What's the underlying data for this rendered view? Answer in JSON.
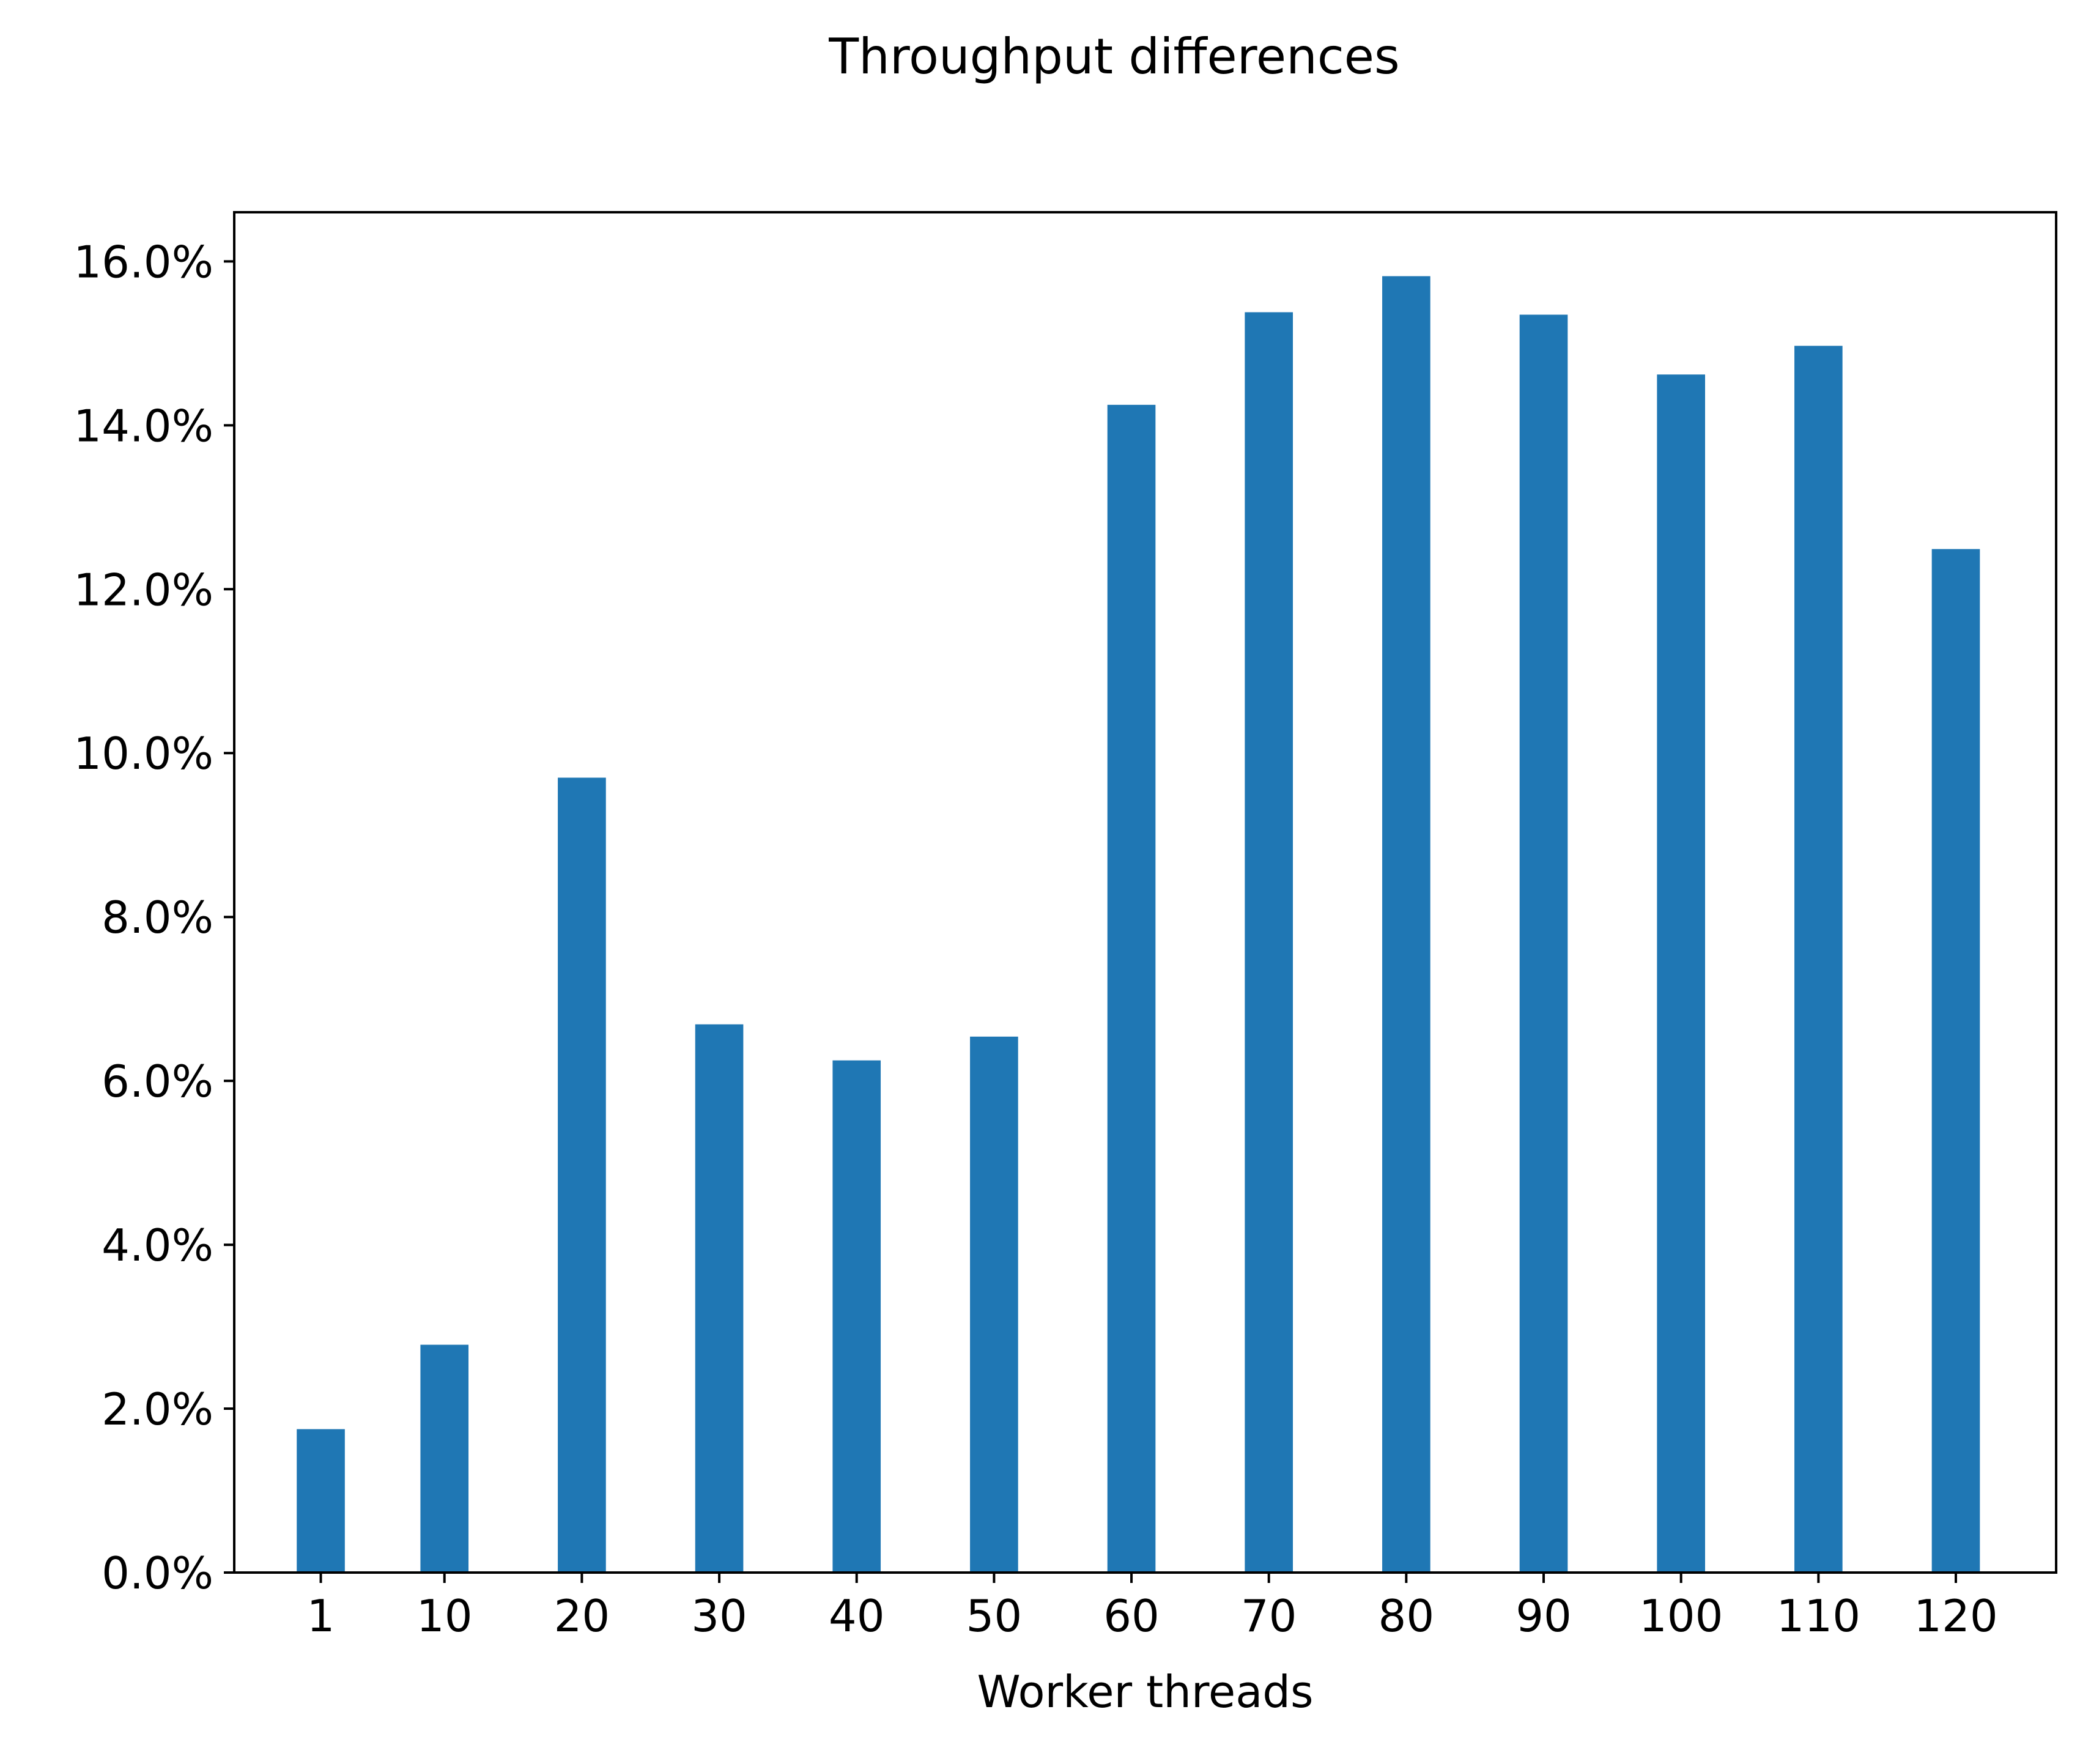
{
  "chart_data": {
    "type": "bar",
    "title": "Throughput differences",
    "xlabel": "Worker threads",
    "ylabel": "",
    "x": [
      1,
      10,
      20,
      30,
      40,
      50,
      60,
      70,
      80,
      90,
      100,
      110,
      120
    ],
    "x_tick_labels": [
      "1",
      "10",
      "20",
      "30",
      "40",
      "50",
      "60",
      "70",
      "80",
      "90",
      "100",
      "110",
      "120"
    ],
    "values": [
      1.75,
      2.78,
      9.7,
      6.69,
      6.25,
      6.54,
      14.25,
      15.38,
      15.82,
      15.35,
      14.62,
      14.97,
      12.49
    ],
    "y_unit": "%",
    "ylim": [
      0,
      16.6
    ],
    "y_ticks": [
      0,
      2,
      4,
      6,
      8,
      10,
      12,
      14,
      16
    ],
    "y_tick_labels": [
      "0.0%",
      "2.0%",
      "4.0%",
      "6.0%",
      "8.0%",
      "10.0%",
      "12.0%",
      "14.0%",
      "16.0%"
    ],
    "xlim": [
      -5.3,
      127.3
    ],
    "bar_color": "#1f77b4",
    "grid": false,
    "legend": "none"
  }
}
